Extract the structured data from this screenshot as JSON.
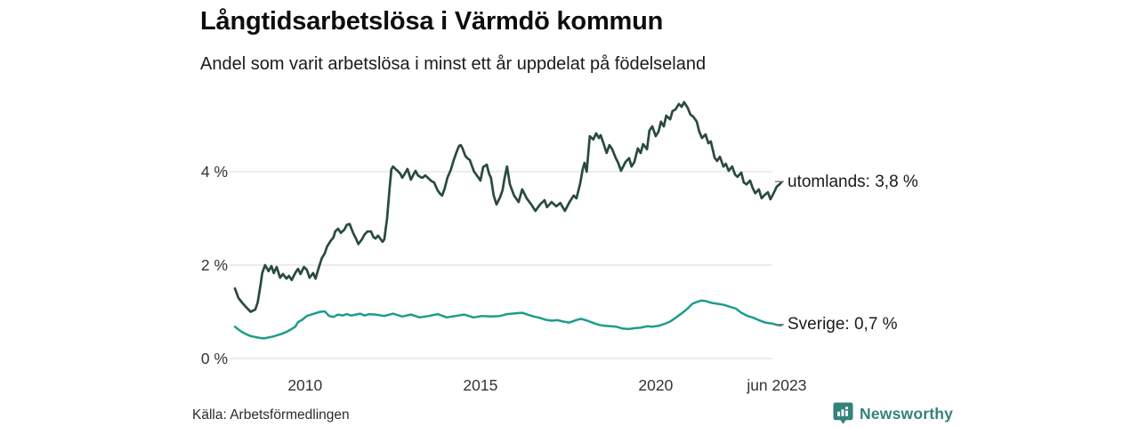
{
  "chart_data": {
    "type": "line",
    "title": "Långtidsarbetslösa i Värmdö kommun",
    "subtitle": "Andel som varit arbetslösa i minst ett år uppdelat på födelseland",
    "source": "Källa: Arbetsförmedlingen",
    "unit": "%",
    "grid": "horizontal-only",
    "legend_position": "right-end-of-line",
    "colors": {
      "gridline": "#e0e0e0",
      "tick_text": "#333333",
      "label_tick": "#777777"
    },
    "x_axis": {
      "range": [
        2008.0,
        2023.58
      ],
      "ticks": [
        {
          "year": 2010,
          "label": "2010"
        },
        {
          "year": 2015,
          "label": "2015"
        },
        {
          "year": 2020,
          "label": "2020"
        },
        {
          "year": 2023.45,
          "label": "jun 2023"
        }
      ]
    },
    "y_axis": {
      "range": [
        0,
        5.6
      ],
      "ticks": [
        {
          "value": 0,
          "label": "0 %"
        },
        {
          "value": 2,
          "label": "2 %"
        },
        {
          "value": 4,
          "label": "4 %"
        }
      ]
    },
    "series": [
      {
        "name": "utomlands",
        "end_label": "utomlands: 3,8 %",
        "end_value_display": "3,8 %",
        "color": "#294a40",
        "points": [
          [
            2008.0,
            1.5
          ],
          [
            2008.1,
            1.3
          ],
          [
            2008.2,
            1.2
          ],
          [
            2008.32,
            1.1
          ],
          [
            2008.45,
            1.0
          ],
          [
            2008.58,
            1.05
          ],
          [
            2008.65,
            1.2
          ],
          [
            2008.73,
            1.58
          ],
          [
            2008.78,
            1.83
          ],
          [
            2008.86,
            2.0
          ],
          [
            2008.96,
            1.87
          ],
          [
            2009.04,
            1.98
          ],
          [
            2009.11,
            1.83
          ],
          [
            2009.19,
            1.96
          ],
          [
            2009.29,
            1.73
          ],
          [
            2009.37,
            1.81
          ],
          [
            2009.47,
            1.71
          ],
          [
            2009.54,
            1.77
          ],
          [
            2009.62,
            1.68
          ],
          [
            2009.72,
            1.83
          ],
          [
            2009.8,
            1.92
          ],
          [
            2009.87,
            1.81
          ],
          [
            2009.97,
            1.96
          ],
          [
            2010.05,
            1.9
          ],
          [
            2010.13,
            1.73
          ],
          [
            2010.23,
            1.83
          ],
          [
            2010.3,
            1.71
          ],
          [
            2010.38,
            1.92
          ],
          [
            2010.48,
            2.15
          ],
          [
            2010.56,
            2.25
          ],
          [
            2010.63,
            2.4
          ],
          [
            2010.74,
            2.53
          ],
          [
            2010.81,
            2.59
          ],
          [
            2010.86,
            2.72
          ],
          [
            2010.94,
            2.78
          ],
          [
            2011.02,
            2.69
          ],
          [
            2011.12,
            2.76
          ],
          [
            2011.19,
            2.86
          ],
          [
            2011.27,
            2.88
          ],
          [
            2011.37,
            2.69
          ],
          [
            2011.45,
            2.57
          ],
          [
            2011.52,
            2.45
          ],
          [
            2011.62,
            2.55
          ],
          [
            2011.7,
            2.66
          ],
          [
            2011.78,
            2.72
          ],
          [
            2011.88,
            2.72
          ],
          [
            2011.95,
            2.6
          ],
          [
            2012.01,
            2.57
          ],
          [
            2012.08,
            2.63
          ],
          [
            2012.16,
            2.55
          ],
          [
            2012.21,
            2.5
          ],
          [
            2012.26,
            2.55
          ],
          [
            2012.34,
            3.0
          ],
          [
            2012.41,
            3.64
          ],
          [
            2012.46,
            4.05
          ],
          [
            2012.51,
            4.11
          ],
          [
            2012.59,
            4.05
          ],
          [
            2012.64,
            4.02
          ],
          [
            2012.72,
            3.95
          ],
          [
            2012.77,
            3.87
          ],
          [
            2012.84,
            3.95
          ],
          [
            2012.92,
            4.06
          ],
          [
            2013.02,
            3.83
          ],
          [
            2013.1,
            3.95
          ],
          [
            2013.15,
            4.02
          ],
          [
            2013.22,
            3.92
          ],
          [
            2013.3,
            3.88
          ],
          [
            2013.35,
            3.87
          ],
          [
            2013.43,
            3.92
          ],
          [
            2013.53,
            3.85
          ],
          [
            2013.6,
            3.8
          ],
          [
            2013.68,
            3.77
          ],
          [
            2013.78,
            3.6
          ],
          [
            2013.86,
            3.52
          ],
          [
            2013.91,
            3.49
          ],
          [
            2013.98,
            3.64
          ],
          [
            2014.06,
            3.87
          ],
          [
            2014.16,
            4.05
          ],
          [
            2014.24,
            4.25
          ],
          [
            2014.31,
            4.4
          ],
          [
            2014.39,
            4.55
          ],
          [
            2014.44,
            4.57
          ],
          [
            2014.49,
            4.5
          ],
          [
            2014.57,
            4.34
          ],
          [
            2014.64,
            4.28
          ],
          [
            2014.7,
            4.25
          ],
          [
            2014.77,
            4.1
          ],
          [
            2014.82,
            4.0
          ],
          [
            2014.92,
            3.9
          ],
          [
            2015.0,
            3.81
          ],
          [
            2015.08,
            4.1
          ],
          [
            2015.18,
            4.15
          ],
          [
            2015.25,
            3.95
          ],
          [
            2015.3,
            3.87
          ],
          [
            2015.38,
            3.49
          ],
          [
            2015.46,
            3.3
          ],
          [
            2015.56,
            3.45
          ],
          [
            2015.63,
            3.6
          ],
          [
            2015.69,
            3.87
          ],
          [
            2015.76,
            4.11
          ],
          [
            2015.84,
            3.73
          ],
          [
            2015.96,
            3.49
          ],
          [
            2016.09,
            3.35
          ],
          [
            2016.19,
            3.62
          ],
          [
            2016.32,
            3.43
          ],
          [
            2016.45,
            3.3
          ],
          [
            2016.57,
            3.16
          ],
          [
            2016.7,
            3.3
          ],
          [
            2016.83,
            3.39
          ],
          [
            2016.9,
            3.24
          ],
          [
            2017.03,
            3.35
          ],
          [
            2017.16,
            3.26
          ],
          [
            2017.28,
            3.33
          ],
          [
            2017.41,
            3.16
          ],
          [
            2017.54,
            3.35
          ],
          [
            2017.66,
            3.49
          ],
          [
            2017.74,
            3.43
          ],
          [
            2017.84,
            3.73
          ],
          [
            2017.92,
            4.06
          ],
          [
            2017.97,
            4.19
          ],
          [
            2018.03,
            4.0
          ],
          [
            2018.12,
            4.76
          ],
          [
            2018.22,
            4.69
          ],
          [
            2018.3,
            4.82
          ],
          [
            2018.38,
            4.72
          ],
          [
            2018.43,
            4.78
          ],
          [
            2018.5,
            4.63
          ],
          [
            2018.6,
            4.4
          ],
          [
            2018.68,
            4.57
          ],
          [
            2018.76,
            4.48
          ],
          [
            2018.86,
            4.29
          ],
          [
            2018.93,
            4.19
          ],
          [
            2019.01,
            4.02
          ],
          [
            2019.14,
            4.21
          ],
          [
            2019.24,
            4.29
          ],
          [
            2019.31,
            4.11
          ],
          [
            2019.39,
            4.21
          ],
          [
            2019.49,
            4.5
          ],
          [
            2019.57,
            4.4
          ],
          [
            2019.64,
            4.59
          ],
          [
            2019.75,
            4.48
          ],
          [
            2019.82,
            4.88
          ],
          [
            2019.9,
            4.97
          ],
          [
            2020.0,
            4.76
          ],
          [
            2020.08,
            4.86
          ],
          [
            2020.15,
            5.07
          ],
          [
            2020.23,
            4.97
          ],
          [
            2020.3,
            5.2
          ],
          [
            2020.41,
            5.12
          ],
          [
            2020.48,
            5.3
          ],
          [
            2020.56,
            5.33
          ],
          [
            2020.66,
            5.45
          ],
          [
            2020.74,
            5.39
          ],
          [
            2020.81,
            5.49
          ],
          [
            2020.91,
            5.37
          ],
          [
            2020.99,
            5.22
          ],
          [
            2021.07,
            5.18
          ],
          [
            2021.17,
            5.07
          ],
          [
            2021.24,
            4.86
          ],
          [
            2021.32,
            4.72
          ],
          [
            2021.42,
            4.8
          ],
          [
            2021.5,
            4.61
          ],
          [
            2021.57,
            4.65
          ],
          [
            2021.68,
            4.3
          ],
          [
            2021.75,
            4.23
          ],
          [
            2021.83,
            4.32
          ],
          [
            2021.93,
            4.11
          ],
          [
            2022.0,
            4.17
          ],
          [
            2022.08,
            4.02
          ],
          [
            2022.18,
            4.11
          ],
          [
            2022.26,
            3.94
          ],
          [
            2022.33,
            3.89
          ],
          [
            2022.44,
            3.98
          ],
          [
            2022.51,
            3.77
          ],
          [
            2022.59,
            3.73
          ],
          [
            2022.69,
            3.81
          ],
          [
            2022.77,
            3.64
          ],
          [
            2022.84,
            3.54
          ],
          [
            2022.94,
            3.62
          ],
          [
            2023.02,
            3.43
          ],
          [
            2023.1,
            3.5
          ],
          [
            2023.2,
            3.56
          ],
          [
            2023.27,
            3.41
          ],
          [
            2023.35,
            3.52
          ],
          [
            2023.45,
            3.68
          ],
          [
            2023.53,
            3.73
          ],
          [
            2023.58,
            3.77
          ]
        ]
      },
      {
        "name": "Sverige",
        "end_label": "Sverige: 0,7 %",
        "end_value_display": "0,7 %",
        "color": "#1d9d8b",
        "points": [
          [
            2008.0,
            0.68
          ],
          [
            2008.1,
            0.62
          ],
          [
            2008.2,
            0.57
          ],
          [
            2008.32,
            0.52
          ],
          [
            2008.45,
            0.48
          ],
          [
            2008.58,
            0.46
          ],
          [
            2008.71,
            0.44
          ],
          [
            2008.83,
            0.43
          ],
          [
            2008.96,
            0.45
          ],
          [
            2009.09,
            0.47
          ],
          [
            2009.21,
            0.5
          ],
          [
            2009.34,
            0.53
          ],
          [
            2009.47,
            0.57
          ],
          [
            2009.59,
            0.62
          ],
          [
            2009.72,
            0.68
          ],
          [
            2009.8,
            0.78
          ],
          [
            2009.92,
            0.83
          ],
          [
            2010.05,
            0.91
          ],
          [
            2010.18,
            0.94
          ],
          [
            2010.3,
            0.97
          ],
          [
            2010.43,
            1.0
          ],
          [
            2010.56,
            1.01
          ],
          [
            2010.69,
            0.91
          ],
          [
            2010.81,
            0.89
          ],
          [
            2010.94,
            0.94
          ],
          [
            2011.07,
            0.92
          ],
          [
            2011.19,
            0.95
          ],
          [
            2011.32,
            0.92
          ],
          [
            2011.45,
            0.94
          ],
          [
            2011.57,
            0.96
          ],
          [
            2011.7,
            0.92
          ],
          [
            2011.83,
            0.95
          ],
          [
            2012.01,
            0.94
          ],
          [
            2012.26,
            0.91
          ],
          [
            2012.51,
            0.96
          ],
          [
            2012.77,
            0.9
          ],
          [
            2013.02,
            0.94
          ],
          [
            2013.27,
            0.88
          ],
          [
            2013.53,
            0.91
          ],
          [
            2013.78,
            0.95
          ],
          [
            2014.04,
            0.88
          ],
          [
            2014.29,
            0.91
          ],
          [
            2014.54,
            0.94
          ],
          [
            2014.8,
            0.88
          ],
          [
            2015.05,
            0.91
          ],
          [
            2015.3,
            0.9
          ],
          [
            2015.56,
            0.91
          ],
          [
            2015.76,
            0.95
          ],
          [
            2016.02,
            0.97
          ],
          [
            2016.19,
            0.98
          ],
          [
            2016.34,
            0.94
          ],
          [
            2016.52,
            0.9
          ],
          [
            2016.7,
            0.87
          ],
          [
            2016.85,
            0.83
          ],
          [
            2017.03,
            0.81
          ],
          [
            2017.21,
            0.82
          ],
          [
            2017.36,
            0.79
          ],
          [
            2017.54,
            0.77
          ],
          [
            2017.72,
            0.82
          ],
          [
            2017.87,
            0.85
          ],
          [
            2018.05,
            0.81
          ],
          [
            2018.22,
            0.76
          ],
          [
            2018.38,
            0.72
          ],
          [
            2018.55,
            0.7
          ],
          [
            2018.73,
            0.69
          ],
          [
            2018.88,
            0.68
          ],
          [
            2019.06,
            0.64
          ],
          [
            2019.24,
            0.63
          ],
          [
            2019.39,
            0.65
          ],
          [
            2019.57,
            0.66
          ],
          [
            2019.75,
            0.69
          ],
          [
            2019.9,
            0.68
          ],
          [
            2020.08,
            0.7
          ],
          [
            2020.25,
            0.74
          ],
          [
            2020.41,
            0.79
          ],
          [
            2020.58,
            0.88
          ],
          [
            2020.76,
            0.98
          ],
          [
            2020.91,
            1.07
          ],
          [
            2021.04,
            1.17
          ],
          [
            2021.17,
            1.21
          ],
          [
            2021.29,
            1.24
          ],
          [
            2021.42,
            1.23
          ],
          [
            2021.6,
            1.19
          ],
          [
            2021.78,
            1.17
          ],
          [
            2021.93,
            1.15
          ],
          [
            2022.1,
            1.11
          ],
          [
            2022.28,
            1.07
          ],
          [
            2022.44,
            0.98
          ],
          [
            2022.62,
            0.91
          ],
          [
            2022.79,
            0.87
          ],
          [
            2022.94,
            0.82
          ],
          [
            2023.12,
            0.77
          ],
          [
            2023.3,
            0.75
          ],
          [
            2023.45,
            0.72
          ],
          [
            2023.58,
            0.71
          ]
        ]
      }
    ]
  },
  "footer": {
    "brand": "Newsworthy",
    "brand_color": "#35827b"
  }
}
